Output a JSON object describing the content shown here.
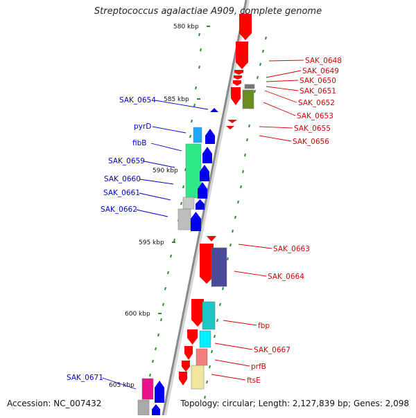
{
  "title": "Streptococcus agalactiae A909, complete genome",
  "footer": {
    "accession": "Accession: NC_007432",
    "topology": "Topology: circular; Length: 2,127,839 bp; Genes: 2,098"
  },
  "colors": {
    "backbone": "#8a8a8a",
    "forward_label": "#0000cc",
    "reverse_label": "#dd0000",
    "tick": "#2e8b2e",
    "gene_red": "#ff0000",
    "gene_blue": "#0000ee"
  },
  "scale_labels": [
    {
      "label": "580 kbp",
      "kbp": 580
    },
    {
      "label": "585 kbp",
      "kbp": 585
    },
    {
      "label": "590 kbp",
      "kbp": 590
    },
    {
      "label": "595 kbp",
      "kbp": 595
    },
    {
      "label": "600 kbp",
      "kbp": 600
    },
    {
      "label": "605 kbp",
      "kbp": 605
    }
  ],
  "right_labels": [
    "SAK_0648",
    "SAK_0649",
    "SAK_0650",
    "SAK_0651",
    "SAK_0652",
    "SAK_0653",
    "SAK_0655",
    "SAK_0656",
    "SAK_0663",
    "SAK_0664",
    "fbp",
    "SAK_0667",
    "prfB",
    "ftsE"
  ],
  "left_labels": [
    "SAK_0654",
    "pyrD",
    "fibB",
    "SAK_0659",
    "SAK_0660",
    "SAK_0661",
    "SAK_0662",
    "SAK_0671"
  ]
}
